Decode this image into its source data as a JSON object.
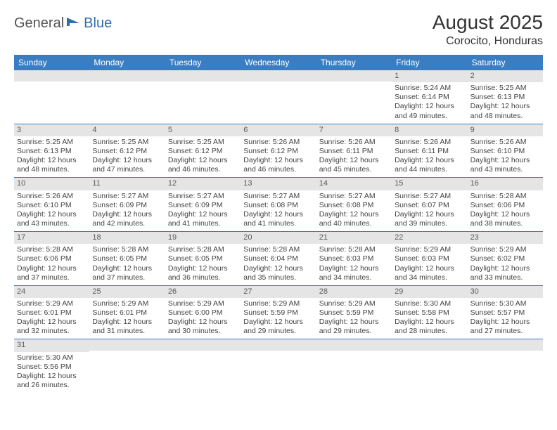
{
  "logo": {
    "text1": "General",
    "text2": "Blue",
    "color1": "#555555",
    "color2": "#2f6fb0",
    "icon_color": "#2f6fb0"
  },
  "title": "August 2025",
  "location": "Corocito, Honduras",
  "header_bg": "#3a7ec1",
  "header_text_color": "#ffffff",
  "daynum_bg": "#e5e5e5",
  "row_border_color": "#3a7ec1",
  "weekdays": [
    "Sunday",
    "Monday",
    "Tuesday",
    "Wednesday",
    "Thursday",
    "Friday",
    "Saturday"
  ],
  "weeks": [
    [
      null,
      null,
      null,
      null,
      null,
      {
        "num": "1",
        "sunrise": "5:24 AM",
        "sunset": "6:14 PM",
        "daylight": "12 hours and 49 minutes."
      },
      {
        "num": "2",
        "sunrise": "5:25 AM",
        "sunset": "6:13 PM",
        "daylight": "12 hours and 48 minutes."
      }
    ],
    [
      {
        "num": "3",
        "sunrise": "5:25 AM",
        "sunset": "6:13 PM",
        "daylight": "12 hours and 48 minutes."
      },
      {
        "num": "4",
        "sunrise": "5:25 AM",
        "sunset": "6:12 PM",
        "daylight": "12 hours and 47 minutes."
      },
      {
        "num": "5",
        "sunrise": "5:25 AM",
        "sunset": "6:12 PM",
        "daylight": "12 hours and 46 minutes."
      },
      {
        "num": "6",
        "sunrise": "5:26 AM",
        "sunset": "6:12 PM",
        "daylight": "12 hours and 46 minutes."
      },
      {
        "num": "7",
        "sunrise": "5:26 AM",
        "sunset": "6:11 PM",
        "daylight": "12 hours and 45 minutes."
      },
      {
        "num": "8",
        "sunrise": "5:26 AM",
        "sunset": "6:11 PM",
        "daylight": "12 hours and 44 minutes."
      },
      {
        "num": "9",
        "sunrise": "5:26 AM",
        "sunset": "6:10 PM",
        "daylight": "12 hours and 43 minutes."
      }
    ],
    [
      {
        "num": "10",
        "sunrise": "5:26 AM",
        "sunset": "6:10 PM",
        "daylight": "12 hours and 43 minutes."
      },
      {
        "num": "11",
        "sunrise": "5:27 AM",
        "sunset": "6:09 PM",
        "daylight": "12 hours and 42 minutes."
      },
      {
        "num": "12",
        "sunrise": "5:27 AM",
        "sunset": "6:09 PM",
        "daylight": "12 hours and 41 minutes."
      },
      {
        "num": "13",
        "sunrise": "5:27 AM",
        "sunset": "6:08 PM",
        "daylight": "12 hours and 41 minutes."
      },
      {
        "num": "14",
        "sunrise": "5:27 AM",
        "sunset": "6:08 PM",
        "daylight": "12 hours and 40 minutes."
      },
      {
        "num": "15",
        "sunrise": "5:27 AM",
        "sunset": "6:07 PM",
        "daylight": "12 hours and 39 minutes."
      },
      {
        "num": "16",
        "sunrise": "5:28 AM",
        "sunset": "6:06 PM",
        "daylight": "12 hours and 38 minutes."
      }
    ],
    [
      {
        "num": "17",
        "sunrise": "5:28 AM",
        "sunset": "6:06 PM",
        "daylight": "12 hours and 37 minutes."
      },
      {
        "num": "18",
        "sunrise": "5:28 AM",
        "sunset": "6:05 PM",
        "daylight": "12 hours and 37 minutes."
      },
      {
        "num": "19",
        "sunrise": "5:28 AM",
        "sunset": "6:05 PM",
        "daylight": "12 hours and 36 minutes."
      },
      {
        "num": "20",
        "sunrise": "5:28 AM",
        "sunset": "6:04 PM",
        "daylight": "12 hours and 35 minutes."
      },
      {
        "num": "21",
        "sunrise": "5:28 AM",
        "sunset": "6:03 PM",
        "daylight": "12 hours and 34 minutes."
      },
      {
        "num": "22",
        "sunrise": "5:29 AM",
        "sunset": "6:03 PM",
        "daylight": "12 hours and 34 minutes."
      },
      {
        "num": "23",
        "sunrise": "5:29 AM",
        "sunset": "6:02 PM",
        "daylight": "12 hours and 33 minutes."
      }
    ],
    [
      {
        "num": "24",
        "sunrise": "5:29 AM",
        "sunset": "6:01 PM",
        "daylight": "12 hours and 32 minutes."
      },
      {
        "num": "25",
        "sunrise": "5:29 AM",
        "sunset": "6:01 PM",
        "daylight": "12 hours and 31 minutes."
      },
      {
        "num": "26",
        "sunrise": "5:29 AM",
        "sunset": "6:00 PM",
        "daylight": "12 hours and 30 minutes."
      },
      {
        "num": "27",
        "sunrise": "5:29 AM",
        "sunset": "5:59 PM",
        "daylight": "12 hours and 29 minutes."
      },
      {
        "num": "28",
        "sunrise": "5:29 AM",
        "sunset": "5:59 PM",
        "daylight": "12 hours and 29 minutes."
      },
      {
        "num": "29",
        "sunrise": "5:30 AM",
        "sunset": "5:58 PM",
        "daylight": "12 hours and 28 minutes."
      },
      {
        "num": "30",
        "sunrise": "5:30 AM",
        "sunset": "5:57 PM",
        "daylight": "12 hours and 27 minutes."
      }
    ],
    [
      {
        "num": "31",
        "sunrise": "5:30 AM",
        "sunset": "5:56 PM",
        "daylight": "12 hours and 26 minutes."
      },
      null,
      null,
      null,
      null,
      null,
      null
    ]
  ],
  "labels": {
    "sunrise": "Sunrise:",
    "sunset": "Sunset:",
    "daylight": "Daylight:"
  }
}
